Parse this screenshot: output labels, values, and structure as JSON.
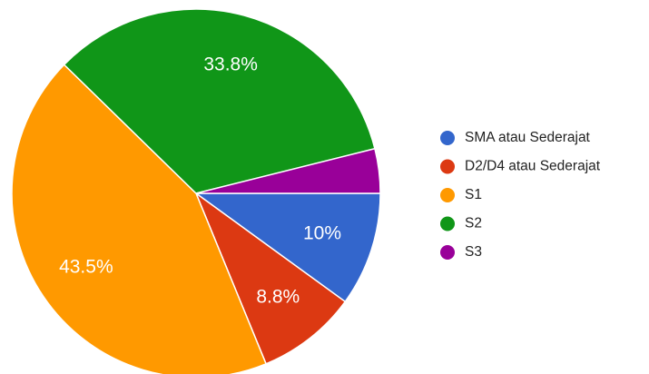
{
  "chart_data": {
    "type": "pie",
    "categories": [
      "SMA atau Sederajat",
      "D2/D4 atau Sederajat",
      "S1",
      "S2",
      "S3"
    ],
    "values": [
      10,
      8.8,
      43.5,
      33.8,
      3.9
    ],
    "value_labels": [
      "10%",
      "8.8%",
      "43.5%",
      "33.8%",
      null
    ],
    "colors": [
      "#3366cc",
      "#dc3912",
      "#ff9900",
      "#109618",
      "#990099"
    ],
    "legend": "right"
  }
}
